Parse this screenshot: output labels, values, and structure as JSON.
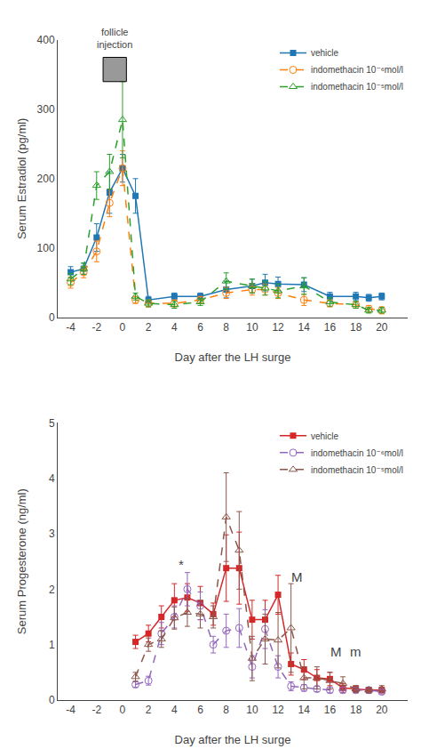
{
  "chart_data": [
    {
      "type": "line",
      "xlabel": "Day after the LH surge",
      "ylabel": "Serum Estradiol (pg/ml)",
      "x": [
        -4,
        -3,
        -2,
        -1,
        0,
        1,
        2,
        4,
        6,
        8,
        10,
        11,
        12,
        14,
        16,
        18,
        19,
        20
      ],
      "series": [
        {
          "name": "vehicle",
          "marker": "square",
          "line_style": "solid",
          "values": [
            65,
            70,
            115,
            180,
            215,
            175,
            25,
            30,
            30,
            40,
            45,
            50,
            48,
            47,
            30,
            30,
            28,
            30
          ],
          "errors": [
            8,
            8,
            20,
            30,
            20,
            25,
            5,
            5,
            5,
            12,
            10,
            12,
            10,
            10,
            6,
            6,
            5,
            5
          ]
        },
        {
          "name": "indomethacin 10⁻⁶mol/l",
          "marker": "circle-open",
          "line_style": "dash",
          "values": [
            50,
            65,
            95,
            165,
            215,
            25,
            20,
            20,
            25,
            35,
            40,
            40,
            35,
            25,
            20,
            18,
            12,
            10
          ],
          "errors": [
            8,
            8,
            15,
            20,
            25,
            5,
            5,
            5,
            5,
            8,
            8,
            8,
            8,
            8,
            5,
            5,
            5,
            5
          ]
        },
        {
          "name": "indomethacin 10⁻⁵mol/l",
          "marker": "triangle-up-open",
          "line_style": "dash",
          "values": [
            55,
            70,
            190,
            210,
            285,
            30,
            20,
            18,
            22,
            52,
            45,
            42,
            38,
            45,
            22,
            18,
            10,
            10
          ],
          "errors": [
            8,
            8,
            20,
            25,
            55,
            5,
            5,
            5,
            5,
            12,
            10,
            10,
            10,
            12,
            6,
            5,
            4,
            4
          ]
        }
      ],
      "ylim": [
        0,
        400
      ],
      "yticks": [
        0,
        100,
        200,
        300,
        400
      ],
      "xlim": [
        -5,
        22
      ],
      "xticks": [
        -4,
        -2,
        0,
        2,
        4,
        6,
        8,
        10,
        12,
        14,
        16,
        18,
        20
      ],
      "grid": false,
      "legend": "upper right",
      "annotations": [
        {
          "text": "follicle\ninjection",
          "x": -0.6,
          "y": 383
        }
      ],
      "patches": [
        {
          "x0": -1.5,
          "y0": 340,
          "x1": 0.3,
          "y1": 375,
          "color": "#999999"
        }
      ]
    },
    {
      "type": "line",
      "xlabel": "Day after the LH surge",
      "ylabel": "Serum Progesterone (ng/ml)",
      "x": [
        1,
        2,
        3,
        4,
        5,
        6,
        7,
        8,
        9,
        10,
        11,
        12,
        13,
        14,
        15,
        16,
        17,
        18,
        19,
        20
      ],
      "series": [
        {
          "name": "vehicle",
          "marker": "square",
          "line_style": "solid",
          "values": [
            1.05,
            1.2,
            1.5,
            1.8,
            1.85,
            1.75,
            1.55,
            2.38,
            2.38,
            1.45,
            1.45,
            1.9,
            0.65,
            0.55,
            0.4,
            0.38,
            0.22,
            0.2,
            0.18,
            0.18
          ],
          "errors": [
            0.12,
            0.15,
            0.2,
            0.3,
            0.25,
            0.3,
            0.2,
            0.6,
            0.65,
            0.35,
            0.35,
            0.35,
            0.2,
            0.18,
            0.15,
            0.12,
            0.08,
            0.06,
            0.05,
            0.05
          ]
        },
        {
          "name": "indomethacin 10⁻⁶mol/l",
          "marker": "circle-open",
          "line_style": "dash",
          "values": [
            0.28,
            0.35,
            1.2,
            1.5,
            2.0,
            1.7,
            1.0,
            1.25,
            1.3,
            0.6,
            1.28,
            0.6,
            0.25,
            0.22,
            0.2,
            0.18,
            0.18,
            0.18,
            0.18,
            0.15
          ],
          "errors": [
            0.05,
            0.08,
            0.2,
            0.2,
            0.3,
            0.25,
            0.15,
            0.3,
            0.35,
            0.2,
            0.35,
            0.2,
            0.08,
            0.06,
            0.05,
            0.05,
            0.05,
            0.05,
            0.05,
            0.04
          ]
        },
        {
          "name": "indomethacin 10⁻⁵mol/l",
          "marker": "triangle-up-open",
          "line_style": "dash",
          "values": [
            0.42,
            1.0,
            1.1,
            1.48,
            1.58,
            1.55,
            1.5,
            3.3,
            2.7,
            0.75,
            1.1,
            1.08,
            1.3,
            0.4,
            0.4,
            0.35,
            0.3,
            0.2,
            0.18,
            0.2
          ],
          "errors": [
            0.08,
            0.12,
            0.15,
            0.2,
            0.25,
            0.25,
            0.2,
            0.8,
            0.7,
            0.4,
            0.45,
            0.5,
            0.8,
            0.2,
            0.2,
            0.15,
            0.12,
            0.06,
            0.05,
            0.06
          ]
        }
      ],
      "ylim": [
        0,
        5
      ],
      "yticks": [
        0,
        1,
        2,
        3,
        4,
        5
      ],
      "xlim": [
        -5,
        22
      ],
      "xticks": [
        -4,
        -2,
        0,
        2,
        4,
        6,
        8,
        10,
        12,
        14,
        16,
        18,
        20
      ],
      "grid": false,
      "legend": "upper right",
      "annotations": [
        {
          "text": "*",
          "x": 4.5,
          "y": 2.45
        },
        {
          "text": "M",
          "x": 13.5,
          "y": 2.22
        },
        {
          "text": "M",
          "x": 16.5,
          "y": 0.88
        },
        {
          "text": "m",
          "x": 18.0,
          "y": 0.88
        }
      ]
    }
  ]
}
